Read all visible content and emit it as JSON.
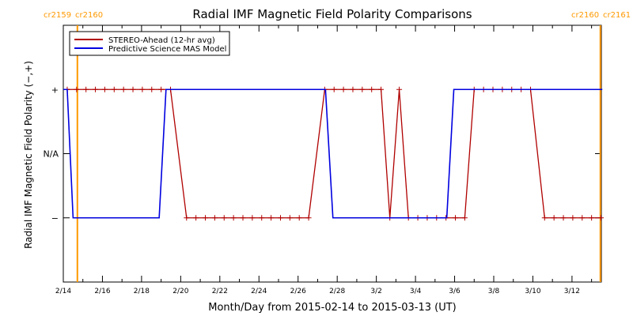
{
  "chart_data": {
    "type": "line",
    "title": "Radial IMF Magnetic Field Polarity Comparisons",
    "xlabel": "Month/Day from 2015-02-14 to 2015-03-13 (UT)",
    "ylabel": "Radial IMF Magnetic Field Polarity (−,+)",
    "x_range_days": [
      0,
      27.5
    ],
    "y_range": [
      -2,
      2
    ],
    "x_ticks": [
      {
        "x": 0,
        "label": "2/14"
      },
      {
        "x": 2,
        "label": "2/16"
      },
      {
        "x": 4,
        "label": "2/18"
      },
      {
        "x": 6,
        "label": "2/20"
      },
      {
        "x": 8,
        "label": "2/22"
      },
      {
        "x": 10,
        "label": "2/24"
      },
      {
        "x": 12,
        "label": "2/26"
      },
      {
        "x": 14,
        "label": "2/28"
      },
      {
        "x": 16,
        "label": "3/2"
      },
      {
        "x": 18,
        "label": "3/4"
      },
      {
        "x": 20,
        "label": "3/6"
      },
      {
        "x": 22,
        "label": "3/8"
      },
      {
        "x": 24,
        "label": "3/10"
      },
      {
        "x": 26,
        "label": "3/12"
      }
    ],
    "y_ticks": [
      {
        "y": 1,
        "label": "+"
      },
      {
        "y": 0,
        "label": "N/A"
      },
      {
        "y": -1,
        "label": "−"
      }
    ],
    "carrington_markers": [
      {
        "x": 0.72,
        "left_label": "cr2159",
        "right_label": "cr2160"
      },
      {
        "x": 27.45,
        "left_label": "cr2160",
        "right_label": "cr2161"
      }
    ],
    "marker_color": "#ff9900",
    "legend_position": "top-left",
    "series": [
      {
        "name": "STEREO-Ahead (12-hr avg)",
        "color": "#b00000",
        "markers": "plus",
        "points": [
          [
            0.2,
            1
          ],
          [
            0.68,
            1
          ],
          [
            1.16,
            1
          ],
          [
            1.64,
            1
          ],
          [
            2.12,
            1
          ],
          [
            2.6,
            1
          ],
          [
            3.08,
            1
          ],
          [
            3.56,
            1
          ],
          [
            4.04,
            1
          ],
          [
            4.52,
            1
          ],
          [
            5.0,
            1
          ],
          [
            5.48,
            1
          ],
          [
            6.3,
            -1
          ],
          [
            6.78,
            -1
          ],
          [
            7.26,
            -1
          ],
          [
            7.74,
            -1
          ],
          [
            8.22,
            -1
          ],
          [
            8.7,
            -1
          ],
          [
            9.18,
            -1
          ],
          [
            9.66,
            -1
          ],
          [
            10.14,
            -1
          ],
          [
            10.62,
            -1
          ],
          [
            11.1,
            -1
          ],
          [
            11.58,
            -1
          ],
          [
            12.06,
            -1
          ],
          [
            12.54,
            -1
          ],
          [
            13.36,
            1
          ],
          [
            13.84,
            1
          ],
          [
            14.32,
            1
          ],
          [
            14.8,
            1
          ],
          [
            15.28,
            1
          ],
          [
            15.76,
            1
          ],
          [
            16.24,
            1
          ],
          [
            16.69,
            -1
          ],
          [
            17.17,
            1
          ],
          [
            17.64,
            -1
          ],
          [
            18.12,
            -1
          ],
          [
            18.6,
            -1
          ],
          [
            19.08,
            -1
          ],
          [
            19.56,
            -1
          ],
          [
            20.04,
            -1
          ],
          [
            20.52,
            -1
          ],
          [
            21.0,
            1
          ],
          [
            21.48,
            1
          ],
          [
            21.96,
            1
          ],
          [
            22.44,
            1
          ],
          [
            22.92,
            1
          ],
          [
            23.4,
            1
          ],
          [
            23.88,
            1
          ],
          [
            24.6,
            -1
          ],
          [
            25.08,
            -1
          ],
          [
            25.56,
            -1
          ],
          [
            26.04,
            -1
          ],
          [
            26.52,
            -1
          ],
          [
            27.0,
            -1
          ],
          [
            27.48,
            -1
          ]
        ]
      },
      {
        "name": "Predictive Science MAS Model",
        "color": "#0000e0",
        "markers": "none",
        "points": [
          [
            0,
            1
          ],
          [
            0.2,
            1
          ],
          [
            0.5,
            -1
          ],
          [
            4.9,
            -1
          ],
          [
            5.25,
            1
          ],
          [
            13.4,
            1
          ],
          [
            13.78,
            -1
          ],
          [
            19.6,
            -1
          ],
          [
            19.96,
            1
          ],
          [
            27.55,
            1
          ]
        ]
      }
    ]
  }
}
